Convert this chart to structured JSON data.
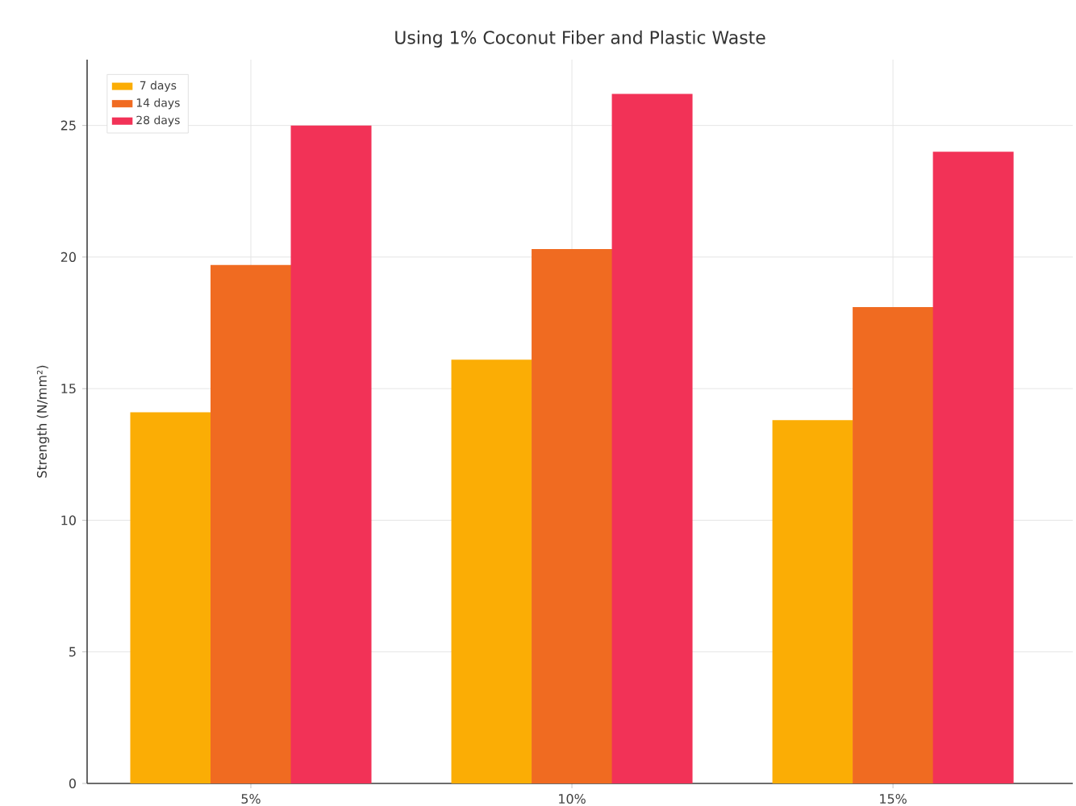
{
  "chart_data": {
    "type": "bar",
    "title": "Using 1% Coconut Fiber and Plastic Waste",
    "ylabel": "Strength (N/mm²)",
    "categories": [
      "5%",
      "10%",
      "15%"
    ],
    "series": [
      {
        "name": "7 days",
        "color": "#fbad05",
        "values": [
          14.1,
          16.1,
          13.8
        ]
      },
      {
        "name": "14 days",
        "color": "#f06b21",
        "values": [
          19.7,
          20.3,
          18.1
        ]
      },
      {
        "name": "28 days",
        "color": "#f23257",
        "values": [
          25.0,
          26.2,
          24.0
        ]
      }
    ],
    "ylim": [
      0,
      27.5
    ],
    "yticks": [
      0,
      5,
      10,
      15,
      20,
      25
    ],
    "grid": true,
    "legend": "top left"
  }
}
